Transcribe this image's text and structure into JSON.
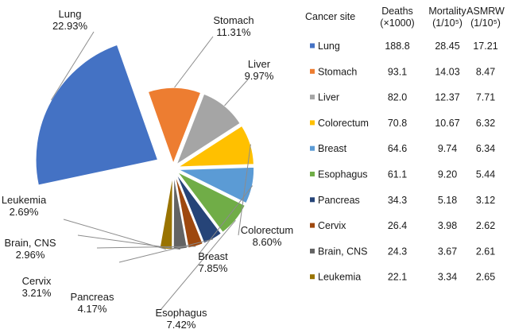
{
  "chart_data": [
    {
      "type": "pie",
      "title": "",
      "slices": [
        {
          "name": "Lung",
          "value": 22.93,
          "label_value": "22.93%",
          "color": "#4472C4"
        },
        {
          "name": "Stomach",
          "value": 11.31,
          "label_value": "11.31%",
          "color": "#ED7D31"
        },
        {
          "name": "Liver",
          "value": 9.97,
          "label_value": "9.97%",
          "color": "#A5A5A5"
        },
        {
          "name": "Colorectum",
          "value": 8.6,
          "label_value": "8.60%",
          "color": "#FFC000"
        },
        {
          "name": "Breast",
          "value": 7.85,
          "label_value": "7.85%",
          "color": "#5B9BD5"
        },
        {
          "name": "Esophagus",
          "value": 7.42,
          "label_value": "7.42%",
          "color": "#70AD47"
        },
        {
          "name": "Pancreas",
          "value": 4.17,
          "label_value": "4.17%",
          "color": "#264478"
        },
        {
          "name": "Cervix",
          "value": 3.21,
          "label_value": "3.21%",
          "color": "#9E480E"
        },
        {
          "name": "Brain, CNS",
          "value": 2.96,
          "label_value": "2.96%",
          "color": "#636363"
        },
        {
          "name": "Leukemia",
          "value": 2.69,
          "label_value": "2.69%",
          "color": "#997300"
        }
      ]
    },
    {
      "type": "table",
      "columns": [
        {
          "key": "site",
          "label": "Cancer site"
        },
        {
          "key": "deaths",
          "label_line1": "Deaths",
          "label_line2": "(×1000)"
        },
        {
          "key": "mortality",
          "label_line1": "Mortality",
          "label_line2": "(1/10⁵)"
        },
        {
          "key": "asmrw",
          "label_line1": "ASMRW",
          "label_line2": "(1/10⁵)"
        }
      ],
      "rows": [
        {
          "site": "Lung",
          "deaths": "188.8",
          "mortality": "28.45",
          "asmrw": "17.21",
          "color": "#4472C4"
        },
        {
          "site": "Stomach",
          "deaths": "93.1",
          "mortality": "14.03",
          "asmrw": "8.47",
          "color": "#ED7D31"
        },
        {
          "site": "Liver",
          "deaths": "82.0",
          "mortality": "12.37",
          "asmrw": "7.71",
          "color": "#A5A5A5"
        },
        {
          "site": "Colorectum",
          "deaths": "70.8",
          "mortality": "10.67",
          "asmrw": "6.32",
          "color": "#FFC000"
        },
        {
          "site": "Breast",
          "deaths": "64.6",
          "mortality": "9.74",
          "asmrw": "6.34",
          "color": "#5B9BD5"
        },
        {
          "site": "Esophagus",
          "deaths": "61.1",
          "mortality": "9.20",
          "asmrw": "5.44",
          "color": "#70AD47"
        },
        {
          "site": "Pancreas",
          "deaths": "34.3",
          "mortality": "5.18",
          "asmrw": "3.12",
          "color": "#264478"
        },
        {
          "site": "Cervix",
          "deaths": "26.4",
          "mortality": "3.98",
          "asmrw": "2.62",
          "color": "#9E480E"
        },
        {
          "site": "Brain, CNS",
          "deaths": "24.3",
          "mortality": "3.67",
          "asmrw": "2.61",
          "color": "#636363"
        },
        {
          "site": "Leukemia",
          "deaths": "22.1",
          "mortality": "3.34",
          "asmrw": "2.65",
          "color": "#997300"
        }
      ]
    }
  ]
}
